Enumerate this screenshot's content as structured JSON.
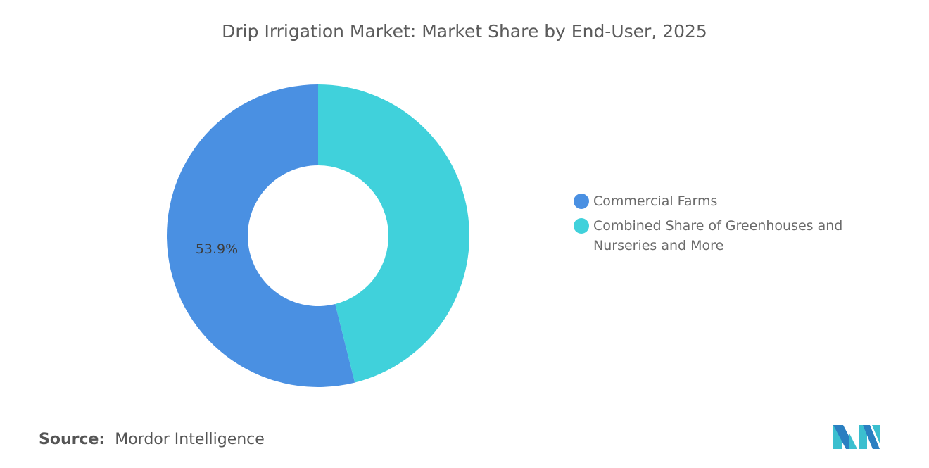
{
  "chart_data": {
    "type": "pie",
    "donut": true,
    "title": "Drip Irrigation Market: Market Share by End-User, 2025",
    "categories": [
      "Commercial Farms",
      "Combined Share of Greenhouses and Nurseries and More"
    ],
    "values": [
      53.9,
      46.1
    ],
    "data_labels": [
      "53.9%",
      ""
    ],
    "colors": [
      "#4a90e2",
      "#40d1db"
    ],
    "legend_position": "right"
  },
  "source": {
    "label": "Source:",
    "value": "Mordor Intelligence"
  },
  "logo": {
    "text": "Mordor Intelligence"
  }
}
